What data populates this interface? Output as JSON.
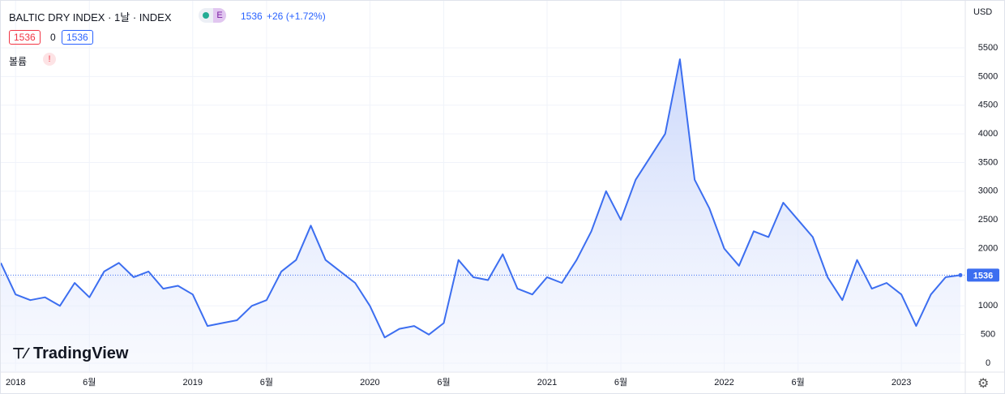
{
  "chart_data": {
    "type": "area",
    "title": "BALTIC DRY INDEX · 1날 · INDEX",
    "badge": "E",
    "last_value": 1536,
    "change": "+26 (+1.72%)",
    "open_value": 1536,
    "volume_value": 0,
    "close_value": 1536,
    "volume_label": "볼륨",
    "warning": "!",
    "currency": "USD",
    "brand": "TradingView",
    "price_tag": 1536,
    "color": "#3c6ef0",
    "grid": true,
    "x": [
      "2017-12",
      "2018-01",
      "2018-02",
      "2018-03",
      "2018-04",
      "2018-05",
      "2018-06",
      "2018-07",
      "2018-08",
      "2018-09",
      "2018-10",
      "2018-11",
      "2018-12",
      "2019-01",
      "2019-02",
      "2019-03",
      "2019-04",
      "2019-05",
      "2019-06",
      "2019-07",
      "2019-08",
      "2019-09",
      "2019-10",
      "2019-11",
      "2019-12",
      "2020-01",
      "2020-02",
      "2020-03",
      "2020-04",
      "2020-05",
      "2020-06",
      "2020-07",
      "2020-08",
      "2020-09",
      "2020-10",
      "2020-11",
      "2020-12",
      "2021-01",
      "2021-02",
      "2021-03",
      "2021-04",
      "2021-05",
      "2021-06",
      "2021-07",
      "2021-08",
      "2021-09",
      "2021-10",
      "2021-11",
      "2021-12",
      "2022-01",
      "2022-02",
      "2022-03",
      "2022-04",
      "2022-05",
      "2022-06",
      "2022-07",
      "2022-08",
      "2022-09",
      "2022-10",
      "2022-11",
      "2022-12",
      "2023-01",
      "2023-02",
      "2023-03",
      "2023-04",
      "2023-05"
    ],
    "values": [
      1750,
      1200,
      1100,
      1150,
      1000,
      1400,
      1150,
      1600,
      1750,
      1500,
      1600,
      1300,
      1350,
      1200,
      650,
      700,
      750,
      1000,
      1100,
      1600,
      1800,
      2400,
      1800,
      1600,
      1400,
      1000,
      450,
      600,
      650,
      500,
      700,
      1800,
      1500,
      1450,
      1900,
      1300,
      1200,
      1500,
      1400,
      1800,
      2300,
      3000,
      2500,
      3200,
      3600,
      4000,
      5300,
      3200,
      2700,
      2000,
      1700,
      2300,
      2200,
      2800,
      2500,
      2200,
      1500,
      1100,
      1800,
      1300,
      1400,
      1200,
      650,
      1200,
      1500,
      1536
    ],
    "xlim": [
      "2017-12",
      "2023-05"
    ],
    "xticks": [
      {
        "value": "2018-01",
        "label": "2018"
      },
      {
        "value": "2018-06",
        "label": "6월"
      },
      {
        "value": "2019-01",
        "label": "2019"
      },
      {
        "value": "2019-06",
        "label": "6월"
      },
      {
        "value": "2020-01",
        "label": "2020"
      },
      {
        "value": "2020-06",
        "label": "6월"
      },
      {
        "value": "2021-01",
        "label": "2021"
      },
      {
        "value": "2021-06",
        "label": "6월"
      },
      {
        "value": "2022-01",
        "label": "2022"
      },
      {
        "value": "2022-06",
        "label": "6월"
      },
      {
        "value": "2023-01",
        "label": "2023"
      }
    ],
    "ylim": [
      -155,
      6320
    ],
    "yticks": [
      0,
      500,
      1000,
      1500,
      2000,
      2500,
      3000,
      3500,
      4000,
      4500,
      5000,
      5500
    ]
  }
}
